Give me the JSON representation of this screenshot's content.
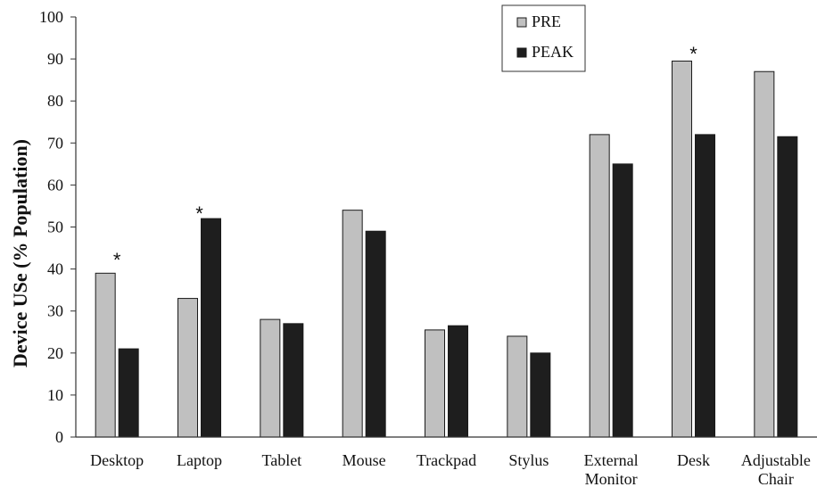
{
  "chart_data": {
    "type": "bar",
    "title": "",
    "xlabel": "",
    "ylabel": "Device USe (% Population)",
    "ylim": [
      0,
      100
    ],
    "yticks": [
      0,
      10,
      20,
      30,
      40,
      50,
      60,
      70,
      80,
      90,
      100
    ],
    "grid": false,
    "legend_position": "top-center",
    "categories": [
      [
        "Desktop"
      ],
      [
        "Laptop"
      ],
      [
        "Tablet"
      ],
      [
        "Mouse"
      ],
      [
        "Trackpad"
      ],
      [
        "Stylus"
      ],
      [
        "External",
        "Monitor"
      ],
      [
        "Desk"
      ],
      [
        "Adjustable",
        "Chair"
      ]
    ],
    "series": [
      {
        "name": "PRE",
        "color": "#c0c0c0",
        "values": [
          39,
          33,
          28,
          54,
          25.5,
          24,
          72,
          89.5,
          87
        ]
      },
      {
        "name": "PEAK",
        "color": "#1e1e1e",
        "values": [
          21,
          52,
          27,
          49,
          26.5,
          20,
          65,
          72,
          71.5
        ]
      }
    ],
    "significance": {
      "symbol": "*",
      "categories": [
        0,
        1,
        7
      ],
      "values": [
        44,
        55,
        93
      ]
    }
  }
}
